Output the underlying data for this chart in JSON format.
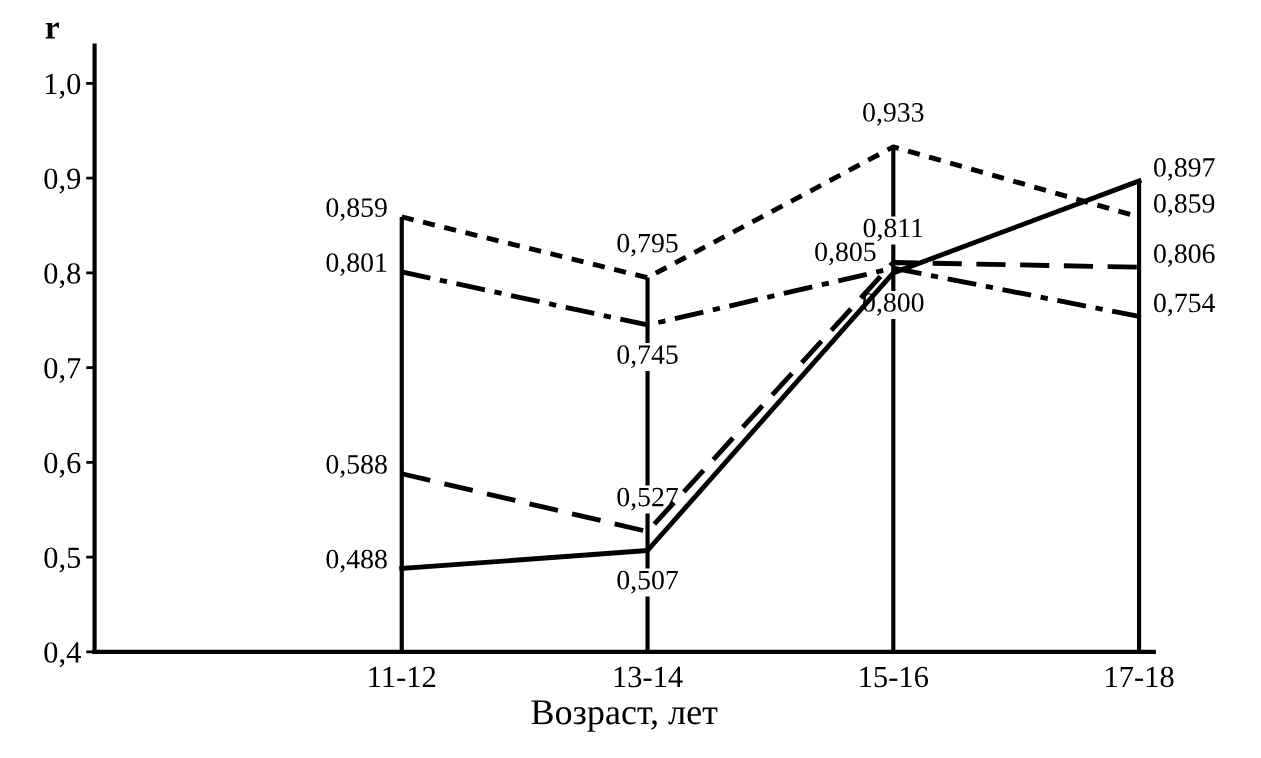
{
  "chart_data": {
    "type": "line",
    "xlabel": "Возраст, лет",
    "ylabel": "r",
    "categories": [
      "11-12",
      "13-14",
      "15-16",
      "17-18"
    ],
    "ylim": [
      0.4,
      1.04
    ],
    "yticks": [
      {
        "value": 0.4,
        "label": "0,4"
      },
      {
        "value": 0.5,
        "label": "0,5"
      },
      {
        "value": 0.6,
        "label": "0,6"
      },
      {
        "value": 0.7,
        "label": "0,7"
      },
      {
        "value": 0.8,
        "label": "0,8"
      },
      {
        "value": 0.9,
        "label": "0,9"
      },
      {
        "value": 1.0,
        "label": "1,0"
      }
    ],
    "series": [
      {
        "color": "#000000",
        "line_style": "dotted",
        "values": [
          0.859,
          0.795,
          0.933,
          0.859
        ],
        "value_labels": [
          "0,859",
          "0,795",
          "0,933",
          "0,859"
        ]
      },
      {
        "color": "#000000",
        "line_style": "dashdot",
        "values": [
          0.801,
          0.745,
          0.805,
          0.754
        ],
        "value_labels": [
          "0,801",
          "0,745",
          "0,805",
          "0,754"
        ]
      },
      {
        "color": "#000000",
        "line_style": "dashed",
        "values": [
          0.588,
          0.527,
          0.811,
          0.806
        ],
        "value_labels": [
          "0,588",
          "0,527",
          "0,811",
          "0,806"
        ]
      },
      {
        "color": "#000000",
        "line_style": "solid",
        "values": [
          0.488,
          0.507,
          0.8,
          0.897
        ],
        "value_labels": [
          "0,488",
          "0,507",
          "0,800",
          "0,897"
        ]
      }
    ],
    "grid": "x",
    "legend": false,
    "marker": "none"
  }
}
